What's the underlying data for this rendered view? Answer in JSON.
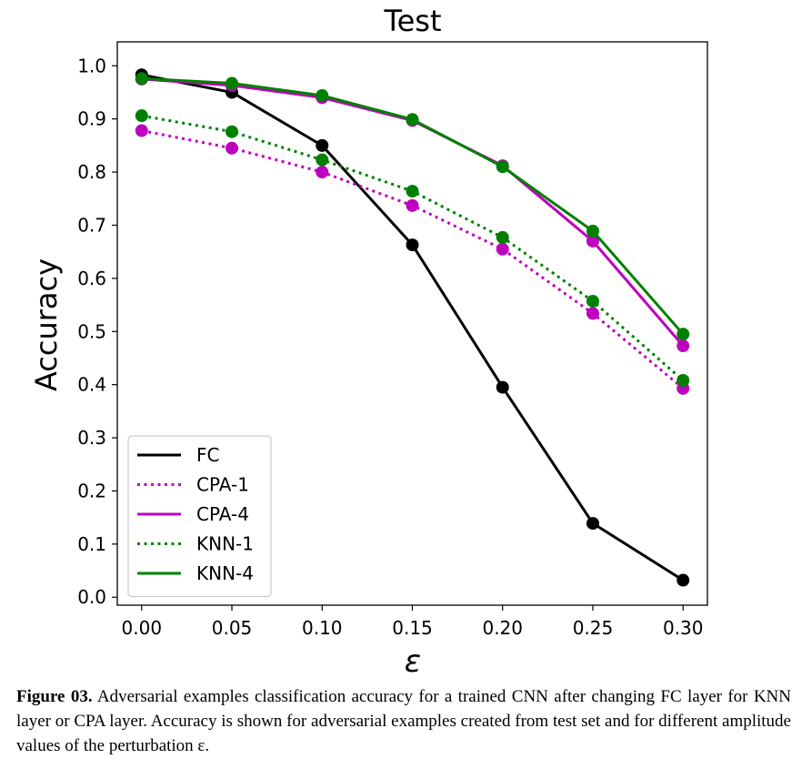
{
  "chart_data": {
    "type": "line",
    "title": "Test",
    "xlabel": "ε",
    "ylabel": "Accuracy",
    "x": [
      0.0,
      0.05,
      0.1,
      0.15,
      0.2,
      0.25,
      0.3
    ],
    "x_tick_labels": [
      "0.00",
      "0.05",
      "0.10",
      "0.15",
      "0.20",
      "0.25",
      "0.30"
    ],
    "y_ticks": [
      0.0,
      0.1,
      0.2,
      0.3,
      0.4,
      0.5,
      0.6,
      0.7,
      0.8,
      0.9,
      1.0
    ],
    "y_tick_labels": [
      "0.0",
      "0.1",
      "0.2",
      "0.3",
      "0.4",
      "0.5",
      "0.6",
      "0.7",
      "0.8",
      "0.9",
      "1.0"
    ],
    "xlim": [
      -0.0135,
      0.3135
    ],
    "ylim": [
      -0.015,
      1.045
    ],
    "grid": false,
    "legend_position": "lower-left",
    "series": [
      {
        "name": "FC",
        "values": [
          0.983,
          0.95,
          0.85,
          0.663,
          0.395,
          0.139,
          0.032
        ],
        "color": "#000000",
        "style": "solid"
      },
      {
        "name": "CPA-1",
        "values": [
          0.878,
          0.845,
          0.8,
          0.737,
          0.655,
          0.534,
          0.393
        ],
        "color": "#bf00bf",
        "style": "dotted"
      },
      {
        "name": "CPA-4",
        "values": [
          0.975,
          0.963,
          0.94,
          0.897,
          0.812,
          0.67,
          0.473
        ],
        "color": "#bf00bf",
        "style": "solid"
      },
      {
        "name": "KNN-1",
        "values": [
          0.906,
          0.876,
          0.823,
          0.764,
          0.677,
          0.557,
          0.408
        ],
        "color": "#008000",
        "style": "dotted"
      },
      {
        "name": "KNN-4",
        "values": [
          0.976,
          0.967,
          0.944,
          0.899,
          0.81,
          0.689,
          0.495
        ],
        "color": "#008000",
        "style": "solid"
      }
    ]
  },
  "caption": {
    "label": "Figure 03.",
    "text": " Adversarial examples classification accuracy for a trained CNN after changing FC layer for KNN layer or CPA layer. Accuracy is shown for adversarial examples created from test set and for different amplitude values of the perturbation  ε."
  }
}
